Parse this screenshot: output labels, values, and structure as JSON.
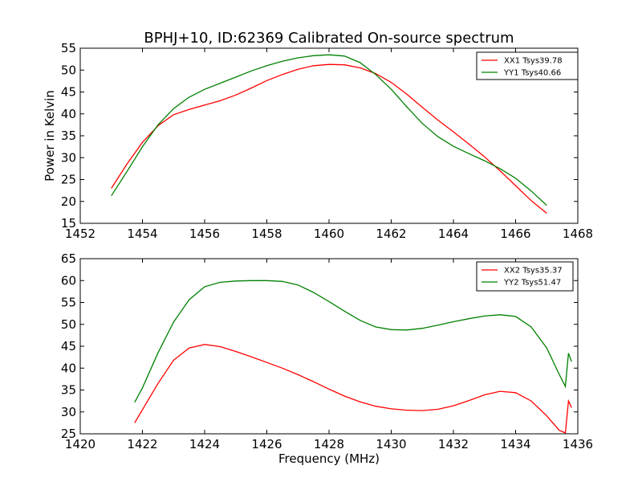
{
  "title": "BPHJ+10, ID:62369 Calibrated On-source spectrum",
  "colors": {
    "red": "#ff0000",
    "green": "#008000"
  },
  "chart_data": [
    {
      "type": "line",
      "ylabel": "Power in Kelvin",
      "xlabel": "",
      "xlim": [
        1452,
        1468
      ],
      "ylim": [
        15,
        55
      ],
      "xticks": [
        "1452",
        "1454",
        "1456",
        "1458",
        "1460",
        "1462",
        "1464",
        "1466",
        "1468"
      ],
      "yticks": [
        "15",
        "20",
        "25",
        "30",
        "35",
        "40",
        "45",
        "50",
        "55"
      ],
      "legend": "top-right",
      "series": [
        {
          "name": "XX1 Tsys39.78",
          "color": "#ff0000",
          "x": [
            1453.0,
            1453.5,
            1454.0,
            1454.5,
            1455.0,
            1455.5,
            1456.0,
            1456.5,
            1457.0,
            1457.5,
            1458.0,
            1458.5,
            1459.0,
            1459.5,
            1460.0,
            1460.5,
            1461.0,
            1461.5,
            1462.0,
            1462.5,
            1463.0,
            1463.5,
            1464.0,
            1464.5,
            1465.0,
            1465.5,
            1466.0,
            1466.5,
            1467.0
          ],
          "y": [
            23.0,
            28.5,
            33.5,
            37.3,
            39.8,
            41.0,
            42.0,
            43.0,
            44.3,
            45.9,
            47.6,
            49.0,
            50.2,
            51.0,
            51.3,
            51.2,
            50.5,
            49.2,
            47.2,
            44.5,
            41.5,
            38.6,
            35.9,
            33.1,
            30.2,
            27.0,
            23.6,
            20.2,
            17.3
          ]
        },
        {
          "name": "YY1 Tsys40.66",
          "color": "#008000",
          "x": [
            1453.0,
            1453.5,
            1454.0,
            1454.5,
            1455.0,
            1455.5,
            1456.0,
            1456.5,
            1457.0,
            1457.5,
            1458.0,
            1458.5,
            1459.0,
            1459.5,
            1460.0,
            1460.5,
            1461.0,
            1461.5,
            1462.0,
            1462.5,
            1463.0,
            1463.5,
            1464.0,
            1464.5,
            1465.0,
            1465.5,
            1466.0,
            1466.5,
            1467.0
          ],
          "y": [
            21.3,
            26.8,
            32.5,
            37.5,
            41.2,
            43.8,
            45.6,
            47.0,
            48.4,
            49.8,
            51.0,
            52.0,
            52.8,
            53.3,
            53.5,
            53.2,
            51.7,
            49.0,
            45.6,
            41.6,
            37.8,
            34.8,
            32.6,
            30.9,
            29.3,
            27.5,
            25.3,
            22.4,
            19.1
          ]
        }
      ]
    },
    {
      "type": "line",
      "xlabel": "Frequency (MHz)",
      "ylabel": "",
      "xlim": [
        1420,
        1436
      ],
      "ylim": [
        25,
        65
      ],
      "xticks": [
        "1420",
        "1422",
        "1424",
        "1426",
        "1428",
        "1430",
        "1432",
        "1434",
        "1436"
      ],
      "yticks": [
        "25",
        "30",
        "35",
        "40",
        "45",
        "50",
        "55",
        "60",
        "65"
      ],
      "legend": "top-right",
      "series": [
        {
          "name": "XX2 Tsys35.37",
          "color": "#ff0000",
          "x": [
            1421.75,
            1422.0,
            1422.5,
            1423.0,
            1423.5,
            1424.0,
            1424.5,
            1425.0,
            1425.5,
            1426.0,
            1426.5,
            1427.0,
            1427.5,
            1428.0,
            1428.5,
            1429.0,
            1429.5,
            1430.0,
            1430.5,
            1431.0,
            1431.5,
            1432.0,
            1432.5,
            1433.0,
            1433.5,
            1434.0,
            1434.5,
            1435.0,
            1435.4,
            1435.6,
            1435.7,
            1435.8
          ],
          "y": [
            27.5,
            30.5,
            36.5,
            41.8,
            44.6,
            45.4,
            44.9,
            43.8,
            42.6,
            41.3,
            40.0,
            38.5,
            36.9,
            35.2,
            33.6,
            32.3,
            31.3,
            30.7,
            30.4,
            30.3,
            30.6,
            31.4,
            32.6,
            33.9,
            34.7,
            34.4,
            32.5,
            29.1,
            25.8,
            25.2,
            32.5,
            31.0
          ]
        },
        {
          "name": "YY2 Tsys51.47",
          "color": "#008000",
          "x": [
            1421.75,
            1422.0,
            1422.5,
            1423.0,
            1423.5,
            1424.0,
            1424.5,
            1425.0,
            1425.5,
            1426.0,
            1426.5,
            1427.0,
            1427.5,
            1428.0,
            1428.5,
            1429.0,
            1429.5,
            1430.0,
            1430.5,
            1431.0,
            1431.5,
            1432.0,
            1432.5,
            1433.0,
            1433.5,
            1434.0,
            1434.5,
            1435.0,
            1435.4,
            1435.6,
            1435.7,
            1435.8
          ],
          "y": [
            32.2,
            35.5,
            43.5,
            50.5,
            55.6,
            58.6,
            59.6,
            59.9,
            60.0,
            60.0,
            59.8,
            59.0,
            57.3,
            55.2,
            53.0,
            50.9,
            49.4,
            48.8,
            48.7,
            49.1,
            49.8,
            50.6,
            51.3,
            51.9,
            52.2,
            51.8,
            49.4,
            44.6,
            38.6,
            35.8,
            43.4,
            41.5
          ]
        }
      ]
    }
  ]
}
